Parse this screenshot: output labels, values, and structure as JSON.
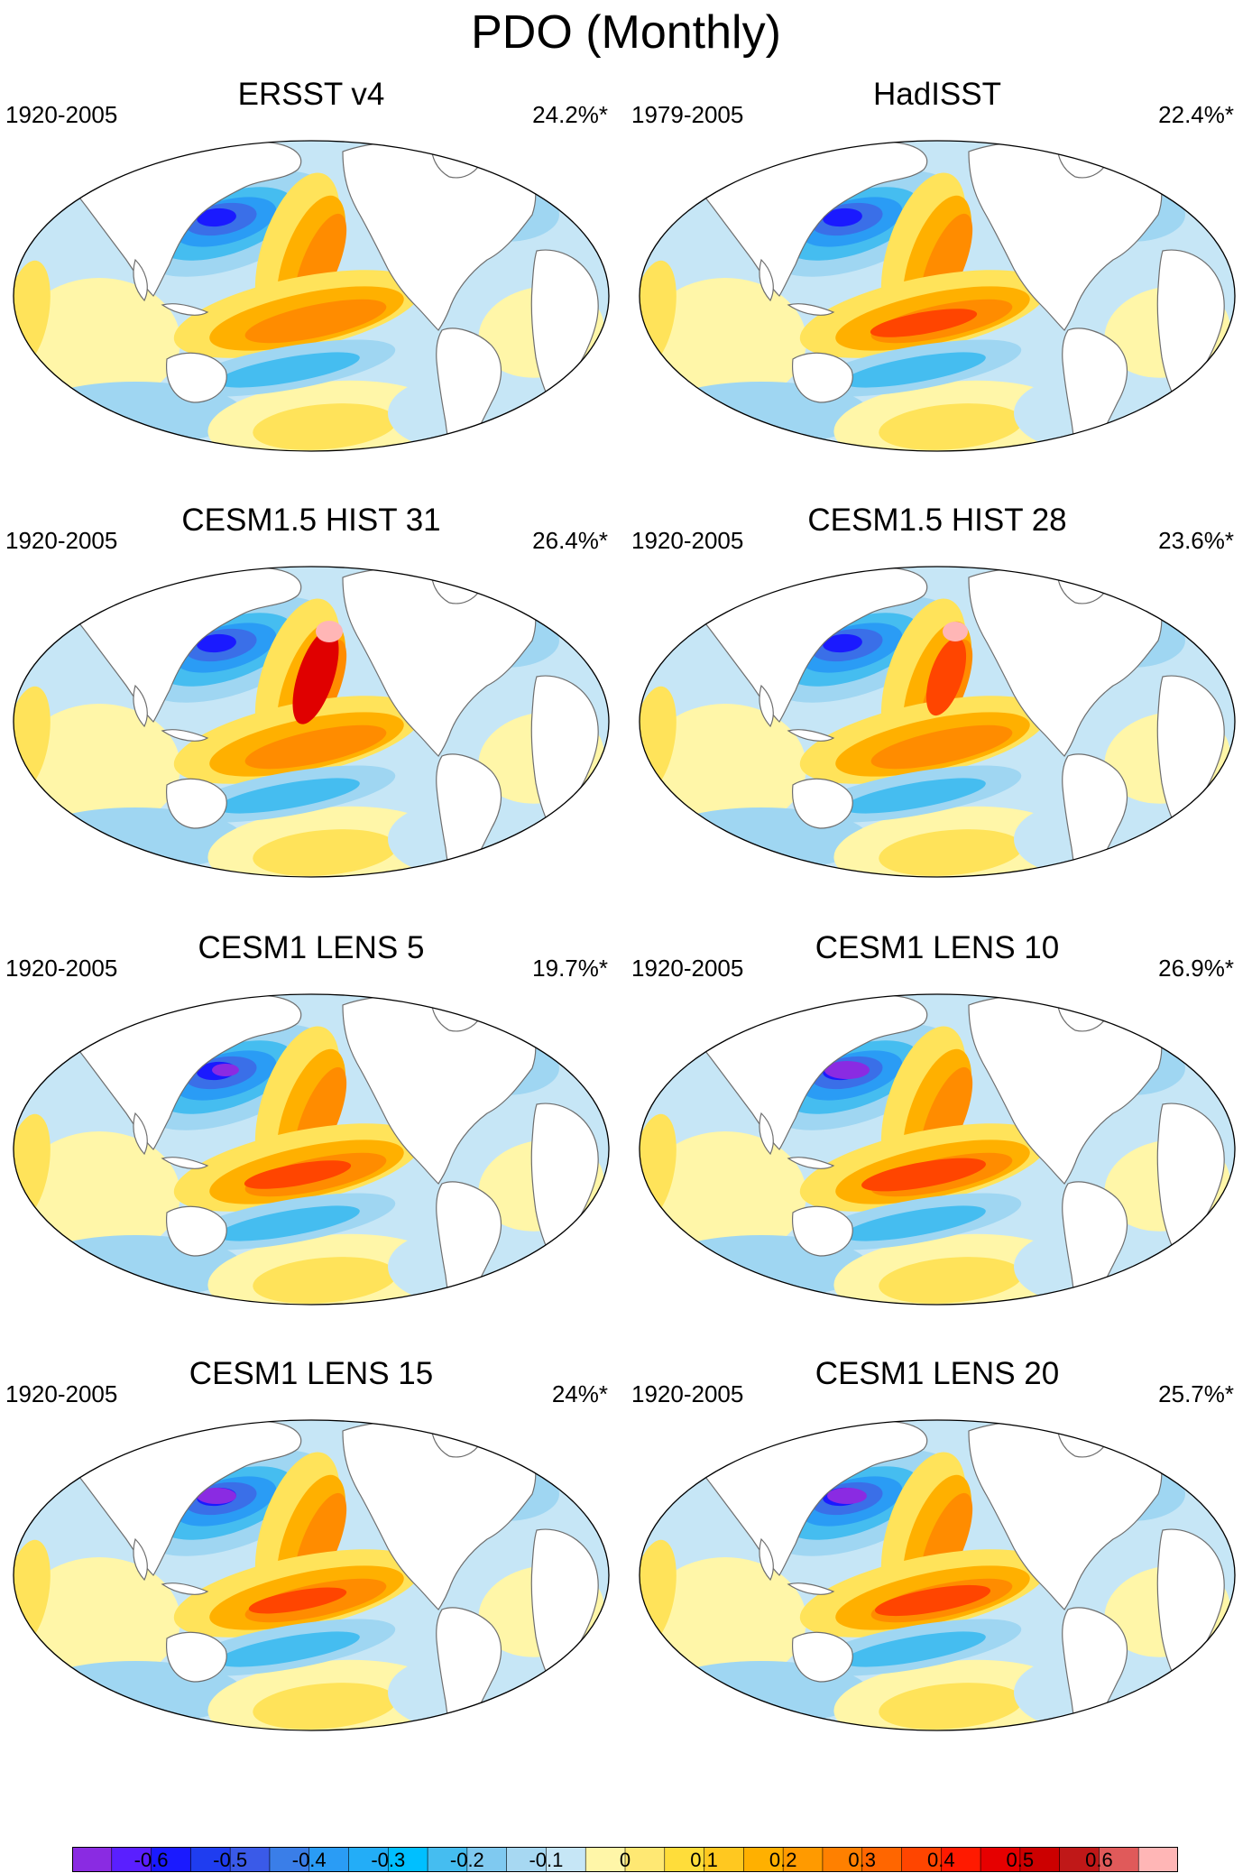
{
  "title": "PDO (Monthly)",
  "colors": {
    "neg6": "#8a2be2",
    "neg5": "#1a1aff",
    "neg4": "#3a6fe8",
    "neg3": "#2a9cf5",
    "neg2": "#45bdf0",
    "neg1": "#9fd6f2",
    "neg0": "#c6e6f6",
    "pos0": "#fff6a8",
    "pos1": "#ffe35a",
    "pos2": "#ffb000",
    "pos3": "#ff8c00",
    "pos4": "#ff4500",
    "pos5": "#e00000",
    "pos6": "#ffb6b6",
    "land": "#ffffff",
    "coast": "#6e6e6e"
  },
  "panels": [
    {
      "title": "ERSST v4",
      "period": "1920-2005",
      "variance": "24.2%*"
    },
    {
      "title": "HadISST",
      "period": "1979-2005",
      "variance": "22.4%*"
    },
    {
      "title": "CESM1.5 HIST 31",
      "period": "1920-2005",
      "variance": "26.4%*"
    },
    {
      "title": "CESM1.5 HIST 28",
      "period": "1920-2005",
      "variance": "23.6%*"
    },
    {
      "title": "CESM1 LENS 5",
      "period": "1920-2005",
      "variance": "19.7%*"
    },
    {
      "title": "CESM1 LENS 10",
      "period": "1920-2005",
      "variance": "26.9%*"
    },
    {
      "title": "CESM1 LENS 15",
      "period": "1920-2005",
      "variance": "24%*"
    },
    {
      "title": "CESM1 LENS 20",
      "period": "1920-2005",
      "variance": "25.7%*"
    }
  ],
  "colorbar": {
    "colors": [
      "#8a2be2",
      "#5a1fff",
      "#1a1aff",
      "#1f3df0",
      "#3a5ae8",
      "#3a7ee8",
      "#2a9cf5",
      "#23adf7",
      "#00bfff",
      "#45bdf0",
      "#7fc9f0",
      "#a7d8f2",
      "#c6e6f6",
      "#fff6a8",
      "#ffe873",
      "#ffdd3a",
      "#ffc820",
      "#ffb000",
      "#ff9a00",
      "#ff8000",
      "#ff6600",
      "#ff4500",
      "#ff1a00",
      "#e60000",
      "#cc0000",
      "#c01818",
      "#e05a5a",
      "#ffb6b6"
    ],
    "labels": [
      "-0.6",
      "-0.5",
      "-0.4",
      "-0.3",
      "-0.2",
      "-0.1",
      "0",
      "0.1",
      "0.2",
      "0.3",
      "0.4",
      "0.5",
      "0.6"
    ]
  }
}
